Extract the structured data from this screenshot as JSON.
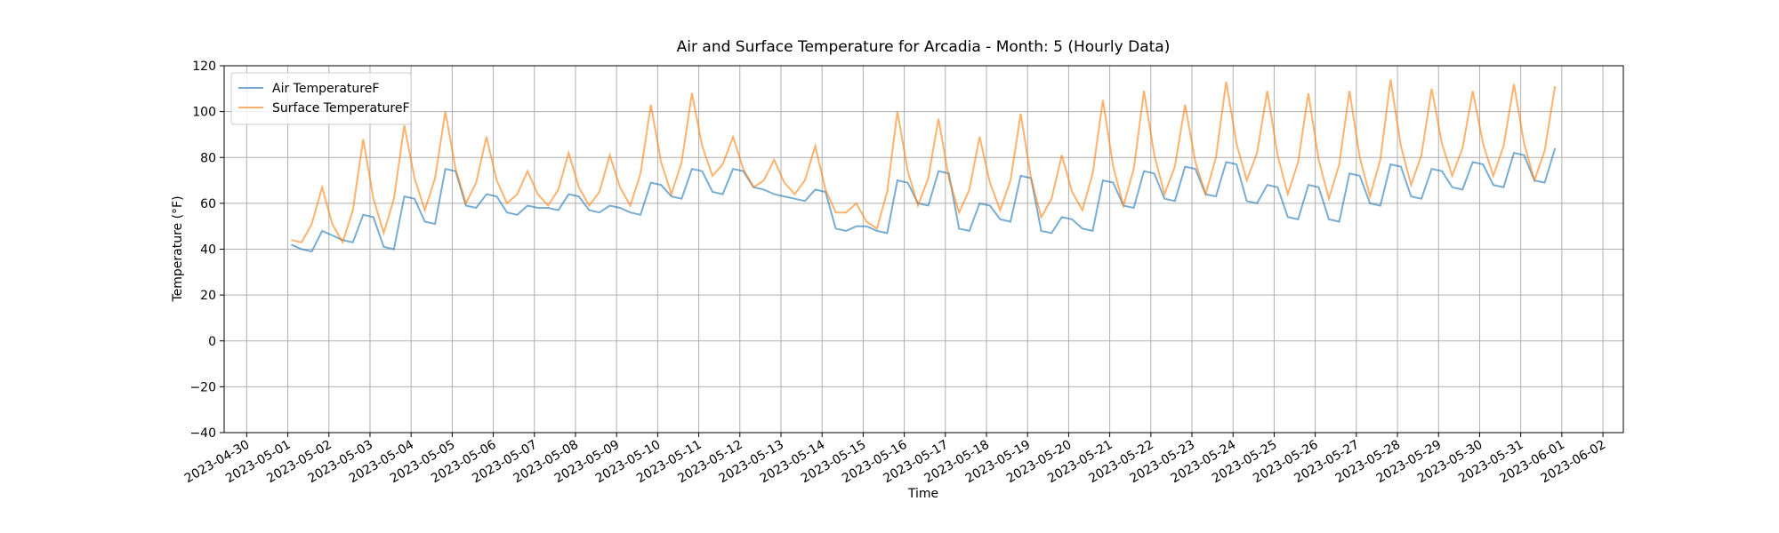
{
  "chart_data": {
    "type": "line",
    "title": "Air and Surface Temperature for Arcadia - Month: 5 (Hourly Data)",
    "xlabel": "Time",
    "ylabel": "Temperature (°F)",
    "x": [
      "2023-05-01 02:00",
      "2023-05-01 08:00",
      "2023-05-01 14:00",
      "2023-05-01 20:00",
      "2023-05-02 02:00",
      "2023-05-02 08:00",
      "2023-05-02 14:00",
      "2023-05-02 20:00",
      "2023-05-03 02:00",
      "2023-05-03 08:00",
      "2023-05-03 14:00",
      "2023-05-03 20:00",
      "2023-05-04 02:00",
      "2023-05-04 08:00",
      "2023-05-04 14:00",
      "2023-05-04 20:00",
      "2023-05-05 02:00",
      "2023-05-05 08:00",
      "2023-05-05 14:00",
      "2023-05-05 20:00",
      "2023-05-06 02:00",
      "2023-05-06 08:00",
      "2023-05-06 14:00",
      "2023-05-06 20:00",
      "2023-05-07 02:00",
      "2023-05-07 08:00",
      "2023-05-07 14:00",
      "2023-05-07 20:00",
      "2023-05-08 02:00",
      "2023-05-08 08:00",
      "2023-05-08 14:00",
      "2023-05-08 20:00",
      "2023-05-09 02:00",
      "2023-05-09 08:00",
      "2023-05-09 14:00",
      "2023-05-09 20:00",
      "2023-05-10 02:00",
      "2023-05-10 08:00",
      "2023-05-10 14:00",
      "2023-05-10 20:00",
      "2023-05-11 02:00",
      "2023-05-11 08:00",
      "2023-05-11 14:00",
      "2023-05-11 20:00",
      "2023-05-12 02:00",
      "2023-05-12 08:00",
      "2023-05-12 14:00",
      "2023-05-12 20:00",
      "2023-05-13 02:00",
      "2023-05-13 08:00",
      "2023-05-13 14:00",
      "2023-05-13 20:00",
      "2023-05-14 02:00",
      "2023-05-14 08:00",
      "2023-05-14 14:00",
      "2023-05-14 20:00",
      "2023-05-15 02:00",
      "2023-05-15 08:00",
      "2023-05-15 14:00",
      "2023-05-15 20:00",
      "2023-05-16 02:00",
      "2023-05-16 08:00",
      "2023-05-16 14:00",
      "2023-05-16 20:00",
      "2023-05-17 02:00",
      "2023-05-17 08:00",
      "2023-05-17 14:00",
      "2023-05-17 20:00",
      "2023-05-18 02:00",
      "2023-05-18 08:00",
      "2023-05-18 14:00",
      "2023-05-18 20:00",
      "2023-05-19 02:00",
      "2023-05-19 08:00",
      "2023-05-19 14:00",
      "2023-05-19 20:00",
      "2023-05-20 02:00",
      "2023-05-20 08:00",
      "2023-05-20 14:00",
      "2023-05-20 20:00",
      "2023-05-21 02:00",
      "2023-05-21 08:00",
      "2023-05-21 14:00",
      "2023-05-21 20:00",
      "2023-05-22 02:00",
      "2023-05-22 08:00",
      "2023-05-22 14:00",
      "2023-05-22 20:00",
      "2023-05-23 02:00",
      "2023-05-23 08:00",
      "2023-05-23 14:00",
      "2023-05-23 20:00",
      "2023-05-24 02:00",
      "2023-05-24 08:00",
      "2023-05-24 14:00",
      "2023-05-24 20:00",
      "2023-05-25 02:00",
      "2023-05-25 08:00",
      "2023-05-25 14:00",
      "2023-05-25 20:00",
      "2023-05-26 02:00",
      "2023-05-26 08:00",
      "2023-05-26 14:00",
      "2023-05-26 20:00",
      "2023-05-27 02:00",
      "2023-05-27 08:00",
      "2023-05-27 14:00",
      "2023-05-27 20:00",
      "2023-05-28 02:00",
      "2023-05-28 08:00",
      "2023-05-28 14:00",
      "2023-05-28 20:00",
      "2023-05-29 02:00",
      "2023-05-29 08:00",
      "2023-05-29 14:00",
      "2023-05-29 20:00",
      "2023-05-30 02:00",
      "2023-05-30 08:00",
      "2023-05-30 14:00",
      "2023-05-30 20:00",
      "2023-05-31 02:00",
      "2023-05-31 08:00",
      "2023-05-31 14:00",
      "2023-05-31 20:00"
    ],
    "series": [
      {
        "name": "Air TemperatureF",
        "color": "#1f77b4",
        "opacity": 0.6,
        "values": [
          42,
          40,
          39,
          48,
          46,
          44,
          43,
          55,
          54,
          41,
          40,
          63,
          62,
          52,
          51,
          75,
          74,
          59,
          58,
          64,
          63,
          56,
          55,
          59,
          58,
          58,
          57,
          64,
          63,
          57,
          56,
          59,
          58,
          56,
          55,
          69,
          68,
          63,
          62,
          75,
          74,
          65,
          64,
          75,
          74,
          67,
          66,
          64,
          63,
          62,
          61,
          66,
          65,
          49,
          48,
          50,
          50,
          48,
          47,
          70,
          69,
          60,
          59,
          74,
          73,
          49,
          48,
          60,
          59,
          53,
          52,
          72,
          71,
          48,
          47,
          54,
          53,
          49,
          48,
          70,
          69,
          59,
          58,
          74,
          73,
          62,
          61,
          76,
          75,
          64,
          63,
          78,
          77,
          61,
          60,
          68,
          67,
          54,
          53,
          68,
          67,
          53,
          52,
          73,
          72,
          60,
          59,
          77,
          76,
          63,
          62,
          75,
          74,
          67,
          66,
          78,
          77,
          68,
          67,
          82,
          81,
          70,
          69,
          84
        ]
      },
      {
        "name": "Surface TemperatureF",
        "color": "#ff7f0e",
        "opacity": 0.6,
        "values": [
          44,
          43,
          51,
          67,
          51,
          43,
          57,
          88,
          62,
          47,
          62,
          94,
          71,
          57,
          71,
          100,
          75,
          60,
          69,
          89,
          70,
          60,
          64,
          74,
          64,
          59,
          66,
          82,
          67,
          59,
          65,
          81,
          67,
          59,
          73,
          103,
          78,
          64,
          78,
          108,
          85,
          72,
          77,
          89,
          75,
          67,
          70,
          79,
          69,
          64,
          70,
          85,
          66,
          56,
          56,
          60,
          52,
          49,
          65,
          100,
          74,
          59,
          71,
          97,
          71,
          56,
          66,
          89,
          69,
          57,
          70,
          99,
          71,
          54,
          62,
          81,
          65,
          57,
          73,
          105,
          76,
          59,
          75,
          109,
          81,
          64,
          76,
          103,
          78,
          64,
          80,
          113,
          86,
          70,
          82,
          109,
          81,
          64,
          78,
          108,
          79,
          62,
          77,
          109,
          80,
          63,
          79,
          114,
          85,
          68,
          81,
          110,
          86,
          72,
          84,
          109,
          86,
          72,
          85,
          112,
          86,
          70,
          83,
          111
        ]
      }
    ],
    "xlim": [
      "2023-04-29 10:50",
      "2023-06-02 11:55"
    ],
    "xticks": [
      "2023-04-30",
      "2023-05-01",
      "2023-05-02",
      "2023-05-03",
      "2023-05-04",
      "2023-05-05",
      "2023-05-06",
      "2023-05-07",
      "2023-05-08",
      "2023-05-09",
      "2023-05-10",
      "2023-05-11",
      "2023-05-12",
      "2023-05-13",
      "2023-05-14",
      "2023-05-15",
      "2023-05-16",
      "2023-05-17",
      "2023-05-18",
      "2023-05-19",
      "2023-05-20",
      "2023-05-21",
      "2023-05-22",
      "2023-05-23",
      "2023-05-24",
      "2023-05-25",
      "2023-05-26",
      "2023-05-27",
      "2023-05-28",
      "2023-05-29",
      "2023-05-30",
      "2023-05-31",
      "2023-06-01",
      "2023-06-02"
    ],
    "ylim": [
      -40,
      120
    ],
    "yticks": [
      {
        "value": -40,
        "label": "−40"
      },
      {
        "value": -20,
        "label": "−20"
      },
      0,
      20,
      40,
      60,
      80,
      100,
      120
    ],
    "grid": true,
    "legend": "upper left"
  }
}
